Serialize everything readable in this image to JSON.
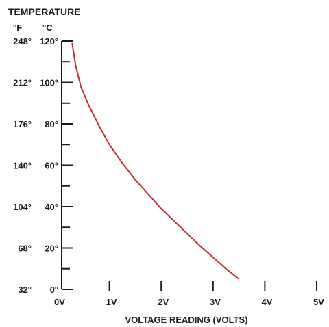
{
  "chart_data": {
    "type": "line",
    "title": "TEMPERATURE",
    "xlabel": "VOLTAGE READING (VOLTS)",
    "y_units": [
      "°F",
      "°C"
    ],
    "x_ticks": [
      "0V",
      "1V",
      "2V",
      "3V",
      "4V",
      "5V"
    ],
    "y_ticks_c": [
      "0°",
      "20°",
      "40°",
      "60°",
      "80°",
      "100°",
      "120°"
    ],
    "y_ticks_f": [
      "32°",
      "68°",
      "104°",
      "140°",
      "176°",
      "212°",
      "248°"
    ],
    "xlim": [
      0,
      5
    ],
    "ylim": [
      0,
      120
    ],
    "series": [
      {
        "color": "#c0302b",
        "x": [
          0.28,
          0.35,
          0.45,
          0.6,
          0.8,
          1.0,
          1.25,
          1.5,
          1.75,
          2.0,
          2.25,
          2.5,
          2.75,
          3.0,
          3.25,
          3.5
        ],
        "y": [
          119,
          108,
          98,
          89,
          79,
          70,
          61,
          53,
          46,
          39,
          33,
          27,
          21,
          15.5,
          10,
          5
        ]
      }
    ]
  }
}
